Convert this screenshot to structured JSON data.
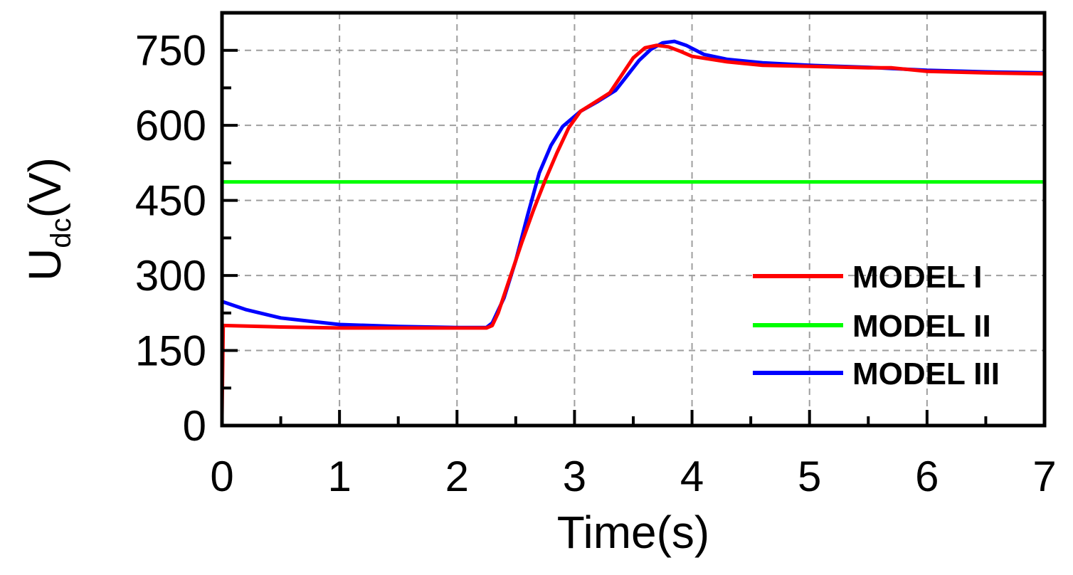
{
  "chart_data": {
    "type": "line",
    "xlabel": "Time(s)",
    "ylabel": {
      "main": "U",
      "sub": "dc",
      "unit": "(V)"
    },
    "xlim": [
      0,
      7
    ],
    "ylim": [
      0,
      825
    ],
    "xticks": [
      0,
      1,
      2,
      3,
      4,
      5,
      6,
      7
    ],
    "yticks": [
      0,
      150,
      300,
      450,
      600,
      750
    ],
    "xtick_labels": [
      "0",
      "1",
      "2",
      "3",
      "4",
      "5",
      "6",
      "7"
    ],
    "ytick_labels": [
      "0",
      "150",
      "300",
      "450",
      "600",
      "750"
    ],
    "grid": true,
    "legend_position": "bottom-right",
    "series": [
      {
        "name": "MODEL I",
        "color": "#ff0000",
        "points": [
          [
            0,
            20
          ],
          [
            0.01,
            200
          ],
          [
            0.5,
            197
          ],
          [
            1.0,
            195
          ],
          [
            2.0,
            195
          ],
          [
            2.25,
            195
          ],
          [
            2.3,
            200
          ],
          [
            2.35,
            225
          ],
          [
            2.45,
            295
          ],
          [
            2.55,
            365
          ],
          [
            2.65,
            430
          ],
          [
            2.75,
            490
          ],
          [
            2.85,
            545
          ],
          [
            2.95,
            595
          ],
          [
            3.05,
            628
          ],
          [
            3.2,
            650
          ],
          [
            3.3,
            665
          ],
          [
            3.4,
            700
          ],
          [
            3.5,
            735
          ],
          [
            3.6,
            755
          ],
          [
            3.7,
            760
          ],
          [
            3.8,
            757
          ],
          [
            3.9,
            748
          ],
          [
            4.0,
            738
          ],
          [
            4.3,
            727
          ],
          [
            4.6,
            720
          ],
          [
            5.0,
            718
          ],
          [
            5.5,
            715
          ],
          [
            5.7,
            715
          ],
          [
            6.0,
            708
          ],
          [
            6.5,
            705
          ],
          [
            7.0,
            703
          ]
        ]
      },
      {
        "name": "MODEL II",
        "color": "#00ff00",
        "points": [
          [
            0,
            487
          ],
          [
            7.0,
            487
          ]
        ]
      },
      {
        "name": "MODEL III",
        "color": "#0000ff",
        "points": [
          [
            0,
            248
          ],
          [
            0.2,
            232
          ],
          [
            0.5,
            215
          ],
          [
            1.0,
            202
          ],
          [
            1.5,
            198
          ],
          [
            2.0,
            196
          ],
          [
            2.25,
            196
          ],
          [
            2.3,
            205
          ],
          [
            2.4,
            255
          ],
          [
            2.5,
            330
          ],
          [
            2.6,
            420
          ],
          [
            2.7,
            505
          ],
          [
            2.8,
            560
          ],
          [
            2.9,
            598
          ],
          [
            3.05,
            628
          ],
          [
            3.2,
            648
          ],
          [
            3.35,
            670
          ],
          [
            3.45,
            700
          ],
          [
            3.55,
            730
          ],
          [
            3.65,
            752
          ],
          [
            3.75,
            765
          ],
          [
            3.85,
            768
          ],
          [
            3.95,
            760
          ],
          [
            4.1,
            742
          ],
          [
            4.3,
            732
          ],
          [
            4.6,
            725
          ],
          [
            5.0,
            720
          ],
          [
            5.5,
            716
          ],
          [
            6.0,
            710
          ],
          [
            6.5,
            707
          ],
          [
            7.0,
            705
          ]
        ]
      }
    ]
  }
}
